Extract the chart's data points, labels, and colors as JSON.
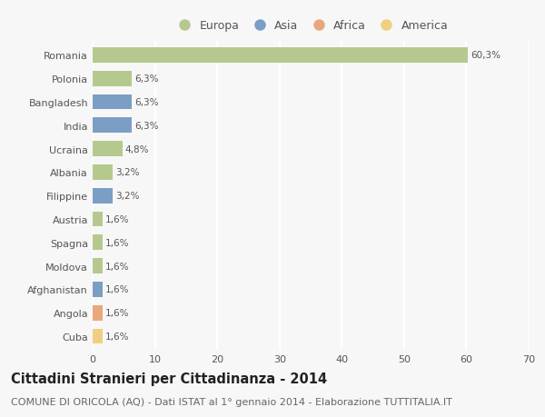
{
  "countries": [
    "Romania",
    "Polonia",
    "Bangladesh",
    "India",
    "Ucraina",
    "Albania",
    "Filippine",
    "Austria",
    "Spagna",
    "Moldova",
    "Afghanistan",
    "Angola",
    "Cuba"
  ],
  "values": [
    60.3,
    6.3,
    6.3,
    6.3,
    4.8,
    3.2,
    3.2,
    1.6,
    1.6,
    1.6,
    1.6,
    1.6,
    1.6
  ],
  "labels": [
    "60,3%",
    "6,3%",
    "6,3%",
    "6,3%",
    "4,8%",
    "3,2%",
    "3,2%",
    "1,6%",
    "1,6%",
    "1,6%",
    "1,6%",
    "1,6%",
    "1,6%"
  ],
  "continents": [
    "Europa",
    "Europa",
    "Asia",
    "Asia",
    "Europa",
    "Europa",
    "Asia",
    "Europa",
    "Europa",
    "Europa",
    "Asia",
    "Africa",
    "America"
  ],
  "colors": {
    "Europa": "#b5c98e",
    "Asia": "#7b9ec4",
    "Africa": "#e8a87c",
    "America": "#f0d080"
  },
  "legend_order": [
    "Europa",
    "Asia",
    "Africa",
    "America"
  ],
  "xlim": [
    0,
    70
  ],
  "xticks": [
    0,
    10,
    20,
    30,
    40,
    50,
    60,
    70
  ],
  "title": "Cittadini Stranieri per Cittadinanza - 2014",
  "subtitle": "COMUNE DI ORICOLA (AQ) - Dati ISTAT al 1° gennaio 2014 - Elaborazione TUTTITALIA.IT",
  "background_color": "#f7f7f7",
  "grid_color": "#ffffff",
  "title_fontsize": 10.5,
  "subtitle_fontsize": 8,
  "label_fontsize": 7.5,
  "tick_fontsize": 8,
  "legend_fontsize": 9
}
